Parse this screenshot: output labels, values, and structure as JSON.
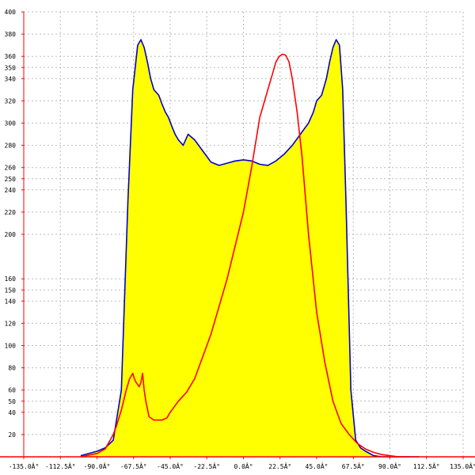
{
  "chart_data": {
    "type": "area",
    "title": "",
    "xlabel": "",
    "ylabel": "",
    "xlim": [
      -135,
      135
    ],
    "ylim": [
      0,
      400
    ],
    "grid": true,
    "x_ticks": [
      -135,
      -112.5,
      -90,
      -67.5,
      -45,
      -22.5,
      0,
      22.5,
      45,
      67.5,
      90,
      112.5,
      135
    ],
    "x_tick_labels": [
      "-135.0Â°",
      "-112.5Â°",
      "-90.0Â°",
      "-67.5Â°",
      "-45.0Â°",
      "-22.5Â°",
      "0.0Â°",
      "22.5Â°",
      "45.0Â°",
      "67.5Â°",
      "90.0Â°",
      "112.5Â°",
      "135.0Â°"
    ],
    "y_ticks": [
      20,
      40,
      50,
      60,
      80,
      100,
      120,
      140,
      150,
      160,
      200,
      220,
      240,
      250,
      260,
      280,
      300,
      320,
      340,
      350,
      360,
      380,
      400
    ],
    "y_tick_labels": [
      "20",
      "40",
      "50",
      "60",
      "80",
      "100",
      "120",
      "140",
      "150",
      "160",
      "200",
      "220",
      "240",
      "250",
      "260",
      "280",
      "300",
      "320",
      "340",
      "350",
      "360",
      "380",
      "400"
    ],
    "colors": {
      "fill": "#ffff00",
      "series_a": "#0000cc",
      "series_b": "#ff0000",
      "grid": "#bbbbbb",
      "axis": "#ff0000"
    },
    "series": [
      {
        "fill": true,
        "x": [
          -100,
          -90,
          -85,
          -80,
          -75,
          -71,
          -68,
          -65,
          -63,
          -61,
          -59,
          -57,
          -55,
          -52,
          -50,
          -48,
          -46,
          -44,
          -42,
          -40,
          -37,
          -34,
          -30,
          -25,
          -20,
          -15,
          -10,
          -5,
          0,
          5,
          10,
          15,
          20,
          25,
          30,
          35,
          40,
          43,
          45,
          48,
          51,
          53,
          55,
          57,
          59,
          61,
          63,
          66,
          69,
          72,
          75,
          80,
          85,
          90,
          95,
          100,
          102,
          108
        ],
        "y": [
          1,
          5,
          8,
          15,
          60,
          230,
          330,
          370,
          375,
          368,
          355,
          340,
          330,
          325,
          317,
          310,
          305,
          297,
          290,
          285,
          280,
          290,
          285,
          275,
          265,
          262,
          264,
          266,
          267,
          266,
          263,
          262,
          266,
          272,
          280,
          290,
          300,
          310,
          320,
          325,
          340,
          355,
          368,
          375,
          370,
          330,
          230,
          60,
          15,
          8,
          5,
          1,
          0,
          0,
          0,
          0,
          0,
          0
        ]
      },
      {
        "fill": false,
        "x": [
          -100,
          -90,
          -85,
          -80,
          -78,
          -75,
          -72,
          -70,
          -68,
          -67,
          -66,
          -65,
          -64,
          -63,
          -62,
          -61,
          -60,
          -58,
          -55,
          -52,
          -50,
          -47,
          -45,
          -40,
          -35,
          -30,
          -25,
          -20,
          -15,
          -10,
          -5,
          0,
          5,
          10,
          15,
          18,
          20,
          22,
          24,
          26,
          28,
          30,
          33,
          36,
          40,
          45,
          50,
          55,
          60,
          65,
          70,
          75,
          80,
          85,
          90,
          95,
          100,
          102
        ],
        "y": [
          0,
          3,
          7,
          20,
          28,
          42,
          60,
          70,
          75,
          70,
          67,
          65,
          63,
          67,
          75,
          60,
          50,
          36,
          33,
          33,
          33,
          35,
          40,
          50,
          58,
          70,
          90,
          110,
          135,
          160,
          190,
          220,
          260,
          305,
          330,
          345,
          355,
          360,
          362,
          361,
          355,
          340,
          310,
          270,
          200,
          130,
          85,
          50,
          30,
          20,
          12,
          7,
          4,
          2,
          1,
          0,
          0,
          0
        ]
      }
    ]
  }
}
